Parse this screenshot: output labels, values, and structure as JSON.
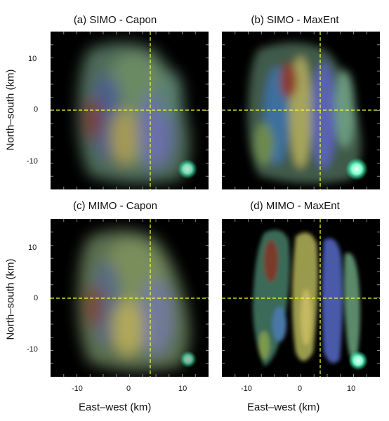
{
  "panels": {
    "a": {
      "title": "(a) SIMO - Capon"
    },
    "b": {
      "title": "(b) SIMO - MaxEnt"
    },
    "c": {
      "title": "(c) MIMO - Capon"
    },
    "d": {
      "title": "(d) MIMO - MaxEnt"
    }
  },
  "axes": {
    "xlabel": "East–west (km)",
    "ylabel": "North–south (km)",
    "xticks": [
      "-10",
      "0",
      "10"
    ],
    "yticks": [
      "10",
      "0",
      "-10"
    ]
  },
  "colors": {
    "crosshair": "#ffff33",
    "background": "#000000"
  }
}
